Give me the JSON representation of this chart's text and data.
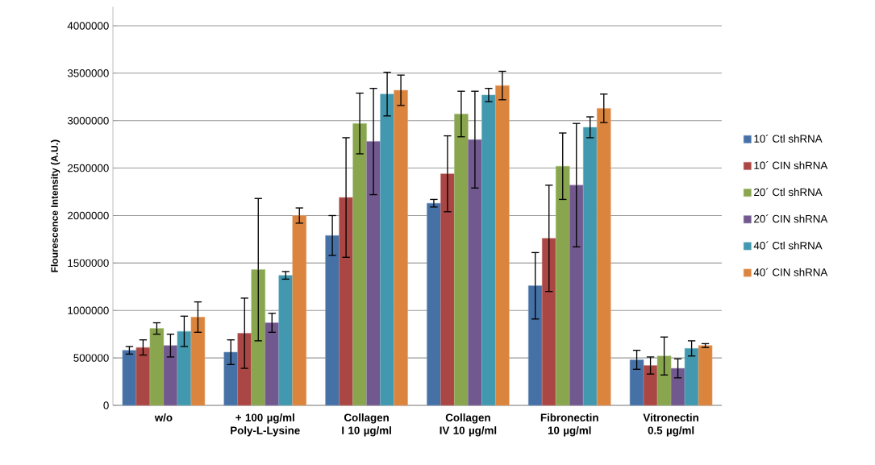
{
  "chart_data": {
    "type": "bar",
    "ylabel": "Flourescence Intensity (A.U.)",
    "categories": [
      "w/o",
      "+ 100 µg/ml Poly-L-Lysine",
      "Collagen I 10 µg/ml",
      "Collagen IV 10 µg/ml",
      "Fibronectin 10 µg/ml",
      "Vitronectin 0.5 µg/ml"
    ],
    "series": [
      {
        "name": "10´ Ctl shRNA",
        "color": "#4571a6",
        "values": [
          580000,
          560000,
          1790000,
          2130000,
          1260000,
          480000
        ],
        "errors": [
          40000,
          130000,
          210000,
          40000,
          350000,
          100000
        ]
      },
      {
        "name": "10´ CIN shRNA",
        "color": "#aa4643",
        "values": [
          610000,
          760000,
          2190000,
          2440000,
          1760000,
          420000
        ],
        "errors": [
          80000,
          370000,
          630000,
          400000,
          560000,
          90000
        ]
      },
      {
        "name": "20´ Ctl shRNA",
        "color": "#89a54e",
        "values": [
          810000,
          1430000,
          2970000,
          3070000,
          2520000,
          520000
        ],
        "errors": [
          60000,
          750000,
          320000,
          240000,
          350000,
          200000
        ]
      },
      {
        "name": "20´ CIN shRNA",
        "color": "#71588f",
        "values": [
          630000,
          870000,
          2780000,
          2800000,
          2320000,
          390000
        ],
        "errors": [
          120000,
          100000,
          560000,
          510000,
          650000,
          100000
        ]
      },
      {
        "name": "40´ Ctl shRNA",
        "color": "#4198af",
        "values": [
          780000,
          1370000,
          3280000,
          3270000,
          2930000,
          600000
        ],
        "errors": [
          160000,
          40000,
          230000,
          70000,
          110000,
          80000
        ]
      },
      {
        "name": "40´ CIN shRNA",
        "color": "#db843d",
        "values": [
          930000,
          2000000,
          3320000,
          3370000,
          3130000,
          630000
        ],
        "errors": [
          160000,
          80000,
          160000,
          150000,
          150000,
          20000
        ]
      }
    ],
    "ylim": [
      0,
      4200000
    ],
    "yticks": [
      0,
      500000,
      1000000,
      1500000,
      2000000,
      2500000,
      3000000,
      3500000,
      4000000
    ],
    "grid": "y",
    "legend": "right"
  }
}
